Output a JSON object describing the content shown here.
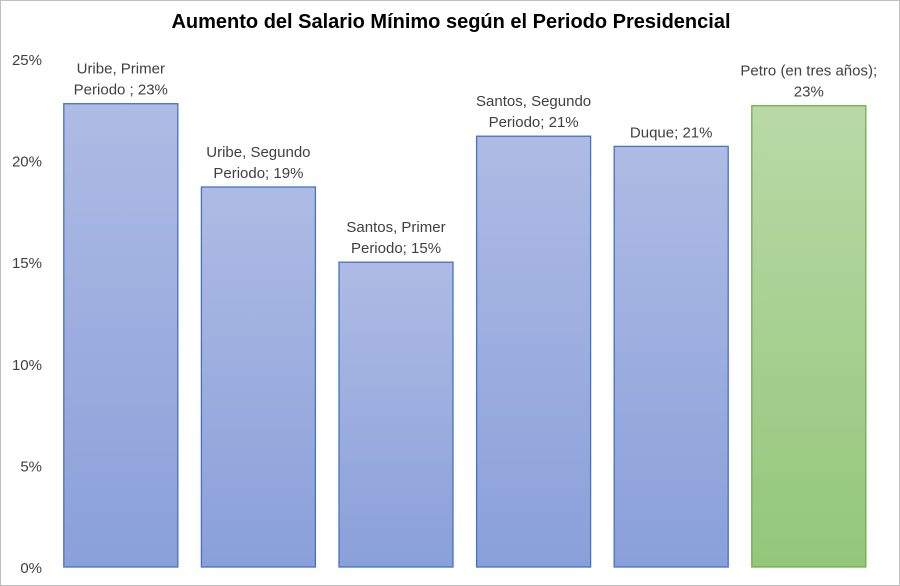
{
  "chart_data": {
    "type": "bar",
    "title": "Aumento del Salario Mínimo según el Periodo Presidencial",
    "xlabel": "",
    "ylabel": "",
    "ylim": [
      0,
      25
    ],
    "y_ticks": [
      "0%",
      "5%",
      "10%",
      "15%",
      "20%",
      "25%"
    ],
    "grid": false,
    "categories": [
      "Uribe, Primer Periodo",
      "Uribe, Segundo Periodo",
      "Santos, Primer Periodo",
      "Santos, Segundo Periodo",
      "Duque",
      "Petro (en tres años)"
    ],
    "values": [
      22.8,
      18.7,
      15.0,
      21.2,
      20.7,
      22.7
    ],
    "data_labels": [
      [
        "Uribe, Primer",
        "Periodo ; 23%"
      ],
      [
        "Uribe, Segundo",
        "Periodo; 19%"
      ],
      [
        "Santos, Primer",
        "Periodo; 15%"
      ],
      [
        "Santos, Segundo",
        "Periodo; 21%"
      ],
      [
        "Duque; 21%"
      ],
      [
        "Petro (en tres años);",
        "23%"
      ]
    ],
    "colors": [
      "#8ea3dc",
      "#8ea3dc",
      "#8ea3dc",
      "#8ea3dc",
      "#8ea3dc",
      "#9dcc86"
    ],
    "border_colors": [
      "#4472c4",
      "#4472c4",
      "#4472c4",
      "#4472c4",
      "#4472c4",
      "#70ad47"
    ]
  }
}
